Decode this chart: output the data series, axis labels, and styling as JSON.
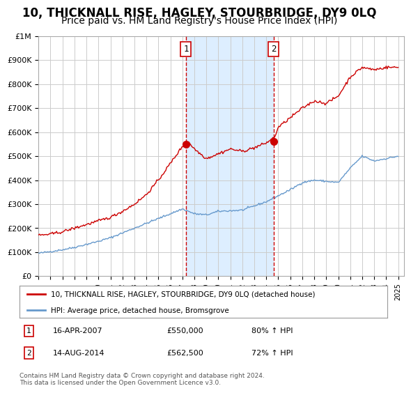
{
  "title": "10, THICKNALL RISE, HAGLEY, STOURBRIDGE, DY9 0LQ",
  "subtitle": "Price paid vs. HM Land Registry's House Price Index (HPI)",
  "title_fontsize": 12,
  "subtitle_fontsize": 10,
  "background_color": "#ffffff",
  "plot_bg_color": "#ffffff",
  "grid_color": "#cccccc",
  "hpi_line_color": "#6699cc",
  "price_line_color": "#cc0000",
  "shaded_region_color": "#ddeeff",
  "ylim": [
    0,
    1000000
  ],
  "yticks": [
    0,
    100000,
    200000,
    300000,
    400000,
    500000,
    600000,
    700000,
    800000,
    900000,
    1000000
  ],
  "ytick_labels": [
    "£0",
    "£100K",
    "£200K",
    "£300K",
    "£400K",
    "£500K",
    "£600K",
    "£700K",
    "£800K",
    "£900K",
    "£1M"
  ],
  "sale1": {
    "date_num": 2007.29,
    "price": 550000,
    "label": "1",
    "date_str": "16-APR-2007",
    "pct": "80% ↑ HPI"
  },
  "sale2": {
    "date_num": 2014.62,
    "price": 562500,
    "label": "2",
    "date_str": "14-AUG-2014",
    "pct": "72% ↑ HPI"
  },
  "legend_property": "10, THICKNALL RISE, HAGLEY, STOURBRIDGE, DY9 0LQ (detached house)",
  "legend_hpi": "HPI: Average price, detached house, Bromsgrove",
  "footnote": "Contains HM Land Registry data © Crown copyright and database right 2024.\nThis data is licensed under the Open Government Licence v3.0.",
  "xlim_start": 1995.0,
  "xlim_end": 2025.5,
  "hpi_xp": [
    1995,
    1997,
    1998,
    2000,
    2001,
    2004,
    2007,
    2008,
    2009,
    2010,
    2012,
    2014,
    2016,
    2017,
    2018,
    2020,
    2021,
    2022,
    2023,
    2024,
    2025
  ],
  "hpi_fp": [
    95000,
    110000,
    120000,
    145000,
    160000,
    220000,
    280000,
    260000,
    255000,
    270000,
    275000,
    310000,
    360000,
    390000,
    400000,
    390000,
    450000,
    500000,
    480000,
    490000,
    500000
  ],
  "prop_xp": [
    1995,
    1996,
    1997,
    1998,
    1999,
    2000,
    2001,
    2002,
    2003,
    2004,
    2005,
    2006,
    2007,
    2007.5,
    2008,
    2009,
    2010,
    2011,
    2012,
    2013,
    2014,
    2014.7,
    2015,
    2016,
    2017,
    2018,
    2019,
    2020,
    2021,
    2022,
    2023,
    2024,
    2025
  ],
  "prop_fp": [
    170000,
    175000,
    185000,
    200000,
    215000,
    230000,
    245000,
    270000,
    300000,
    340000,
    400000,
    470000,
    540000,
    560000,
    530000,
    490000,
    510000,
    530000,
    520000,
    535000,
    555000,
    580000,
    620000,
    660000,
    700000,
    730000,
    720000,
    750000,
    830000,
    870000,
    860000,
    870000,
    870000
  ],
  "xtick_years": [
    1995,
    1996,
    1997,
    1998,
    1999,
    2000,
    2001,
    2002,
    2003,
    2004,
    2005,
    2006,
    2007,
    2008,
    2009,
    2010,
    2011,
    2012,
    2013,
    2014,
    2015,
    2016,
    2017,
    2018,
    2019,
    2020,
    2021,
    2022,
    2023,
    2024,
    2025
  ]
}
